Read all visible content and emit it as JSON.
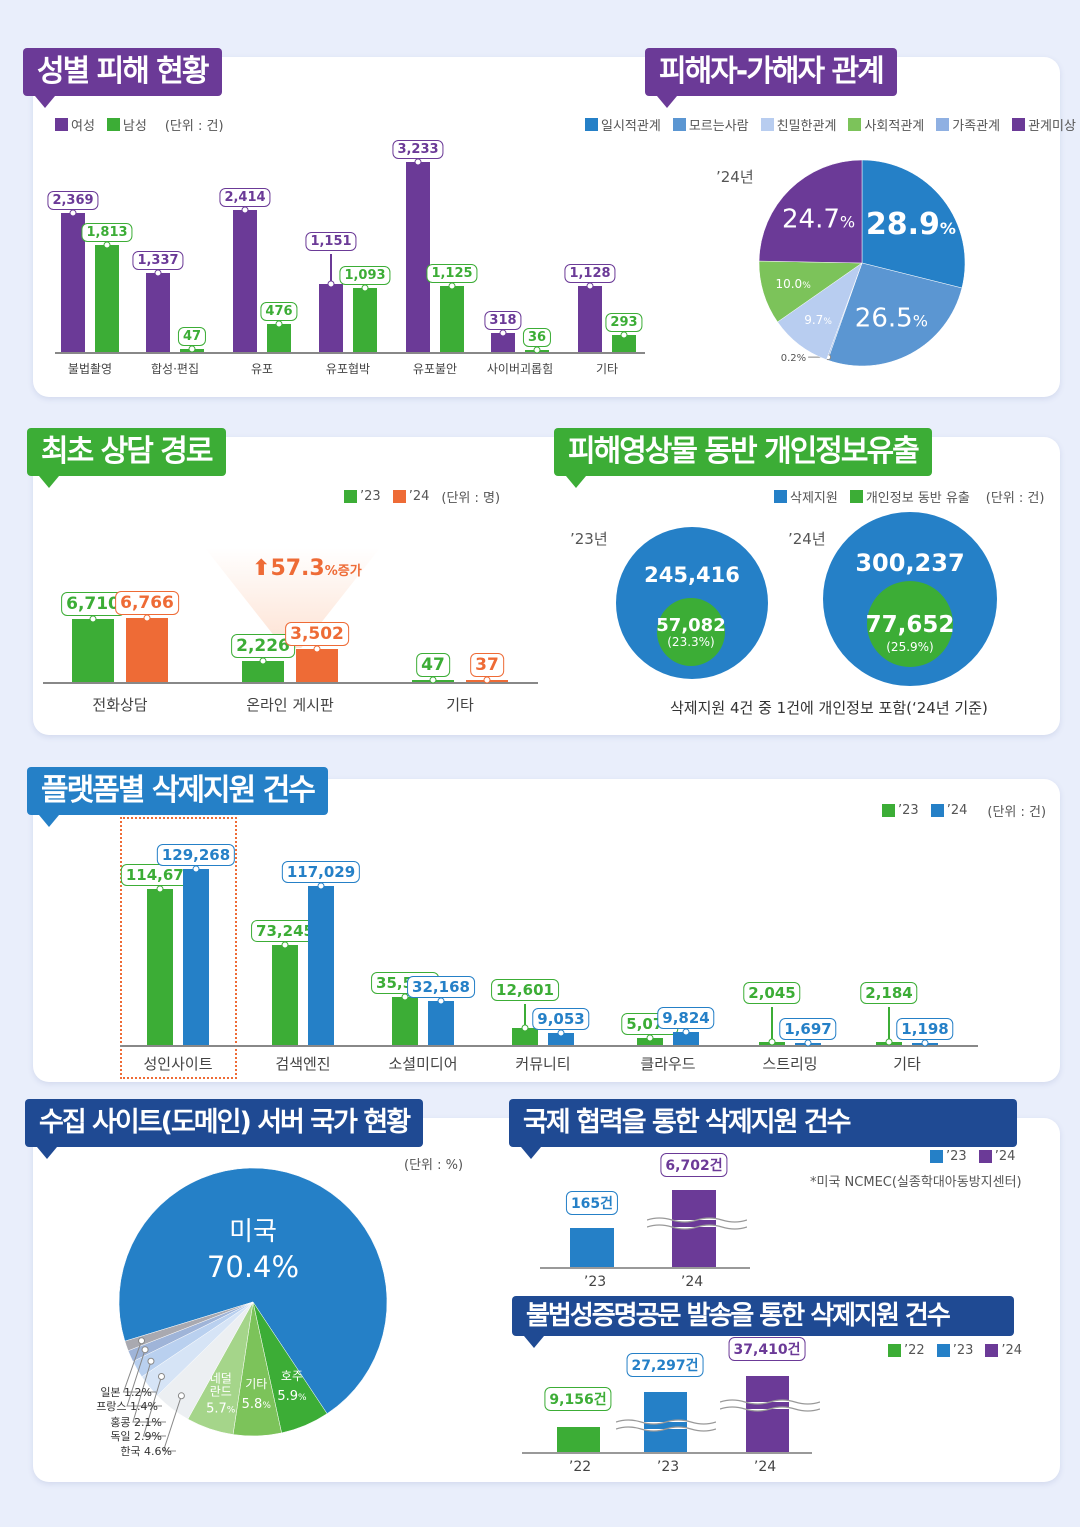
{
  "colors": {
    "purple": "#6b3a97",
    "green": "#3cad36",
    "blue": "#2580c7",
    "orange": "#ee6b36",
    "navy": "#1f4a93"
  },
  "section1": {
    "title": "성별 피해 현황",
    "legend": [
      "여성",
      "남성"
    ],
    "unit": "(단위 : 건)"
  },
  "section2": {
    "title": "피해자-가해자 관계",
    "year": "’24년"
  },
  "section3": {
    "title": "최초 상담 경로",
    "legend": [
      "’23",
      "’24"
    ],
    "unit": "(단위 : 명)",
    "increase": "57.3",
    "increase_suffix": "%증가"
  },
  "section4": {
    "title": "피해영상물 동반 개인정보유출",
    "legend": [
      "삭제지원",
      "개인정보 동반 유출"
    ],
    "unit": "(단위 : 건)",
    "years": [
      {
        "year": "’23년",
        "total": "245,416",
        "leak": "57,082",
        "pct": "(23.3%)"
      },
      {
        "year": "’24년",
        "total": "300,237",
        "leak": "77,652",
        "pct": "(25.9%)"
      }
    ],
    "caption": "삭제지원 4건 중 1건에 개인정보 포함(‘24년 기준)"
  },
  "section5": {
    "title": "플랫폼별 삭제지원 건수",
    "legend": [
      "’23",
      "’24"
    ],
    "unit": "(단위 : 건)"
  },
  "section6": {
    "title": "수집 사이트(도메인) 서버 국가 현황",
    "unit": "(단위 : %)"
  },
  "section7": {
    "title": "국제 협력을 통한 삭제지원 건수",
    "legend": [
      "’23",
      "’24"
    ],
    "note": "*미국 NCMEC(실종학대아동방지센터)",
    "bars": [
      {
        "year": "’23",
        "label": "165건",
        "value": 165
      },
      {
        "year": "’24",
        "label": "6,702건",
        "value": 6702
      }
    ]
  },
  "section8": {
    "title": "불법성증명공문 발송을 통한 삭제지원 건수",
    "legend": [
      "’22",
      "’23",
      "’24"
    ],
    "bars": [
      {
        "year": "’22",
        "label": "9,156건",
        "value": 9156
      },
      {
        "year": "’23",
        "label": "27,297건",
        "value": 27297
      },
      {
        "year": "’24",
        "label": "37,410건",
        "value": 37410
      }
    ]
  },
  "chart_data": [
    {
      "type": "bar",
      "title": "성별 피해 현황",
      "categories": [
        "불법촬영",
        "합성·편집",
        "유포",
        "유포협박",
        "유포불안",
        "사이버괴롭힘",
        "기타"
      ],
      "series": [
        {
          "name": "여성",
          "values": [
            2369,
            1337,
            2414,
            1151,
            3233,
            318,
            1128
          ],
          "labels": [
            "2,369",
            "1,337",
            "2,414",
            "1,151",
            "3,233",
            "318",
            "1,128"
          ]
        },
        {
          "name": "남성",
          "values": [
            1813,
            47,
            476,
            1093,
            1125,
            36,
            293
          ],
          "labels": [
            "1,813",
            "47",
            "476",
            "1,093",
            "1,125",
            "36",
            "293"
          ]
        }
      ]
    },
    {
      "type": "pie",
      "title": "피해자-가해자 관계 ’24년",
      "slices": [
        {
          "name": "일시적관계",
          "value": 28.9,
          "label": "28.9",
          "color": "#2580c7"
        },
        {
          "name": "모르는사람",
          "value": 26.5,
          "label": "26.5",
          "color": "#5b96d2"
        },
        {
          "name": "가족관계",
          "value": 0.2,
          "label": "0.2%",
          "color": "#8fb0e2"
        },
        {
          "name": "친밀한관계",
          "value": 9.7,
          "label": "9.7",
          "color": "#b8cdf0"
        },
        {
          "name": "사회적관계",
          "value": 10.0,
          "label": "10.0",
          "color": "#7cc35a"
        },
        {
          "name": "관계미상",
          "value": 24.7,
          "label": "24.7",
          "color": "#6b3a97"
        }
      ],
      "legend_order": [
        "일시적관계",
        "모르는사람",
        "친밀한관계",
        "사회적관계",
        "가족관계",
        "관계미상"
      ]
    },
    {
      "type": "bar",
      "title": "최초 상담 경로",
      "categories": [
        "전화상담",
        "온라인 게시판",
        "기타"
      ],
      "series": [
        {
          "name": "’23",
          "values": [
            6710,
            2226,
            47
          ],
          "labels": [
            "6,710",
            "2,226",
            "47"
          ]
        },
        {
          "name": "’24",
          "values": [
            6766,
            3502,
            37
          ],
          "labels": [
            "6,766",
            "3,502",
            "37"
          ]
        }
      ]
    },
    {
      "type": "bar",
      "title": "플랫폼별 삭제지원 건수",
      "categories": [
        "성인사이트",
        "검색엔진",
        "소셜미디어",
        "커뮤니티",
        "클라우드",
        "스트리밍",
        "기타"
      ],
      "series": [
        {
          "name": "’23",
          "values": [
            114672,
            73245,
            35599,
            12601,
            5070,
            2045,
            2184
          ],
          "labels": [
            "114,672",
            "73,245",
            "35,599",
            "12,601",
            "5,070",
            "2,045",
            "2,184"
          ]
        },
        {
          "name": "’24",
          "values": [
            129268,
            117029,
            32168,
            9053,
            9824,
            1697,
            1198
          ],
          "labels": [
            "129,268",
            "117,029",
            "32,168",
            "9,053",
            "9,824",
            "1,697",
            "1,198"
          ]
        }
      ]
    },
    {
      "type": "pie",
      "title": "수집 사이트(도메인) 서버 국가 현황",
      "slices": [
        {
          "name": "미국",
          "value": 70.4,
          "label": "70.4%",
          "color": "#2580c7"
        },
        {
          "name": "호주",
          "value": 5.9,
          "label": "5.9",
          "color": "#3cad36"
        },
        {
          "name": "기타",
          "value": 5.8,
          "label": "5.8",
          "color": "#7cc35a"
        },
        {
          "name": "네덜란드",
          "value": 5.7,
          "label": "5.7",
          "color": "#a5d58a"
        },
        {
          "name": "한국",
          "value": 4.6,
          "label": "4.6%",
          "color": "#eceff2"
        },
        {
          "name": "독일",
          "value": 2.9,
          "label": "2.9%",
          "color": "#d6e4f6"
        },
        {
          "name": "홍콩",
          "value": 2.1,
          "label": "2.1%",
          "color": "#b9d0ef"
        },
        {
          "name": "프랑스",
          "value": 1.4,
          "label": "1.4%",
          "color": "#9fb4d8"
        },
        {
          "name": "일본",
          "value": 1.2,
          "label": "1.2%",
          "color": "#a9a9b0"
        }
      ]
    }
  ]
}
